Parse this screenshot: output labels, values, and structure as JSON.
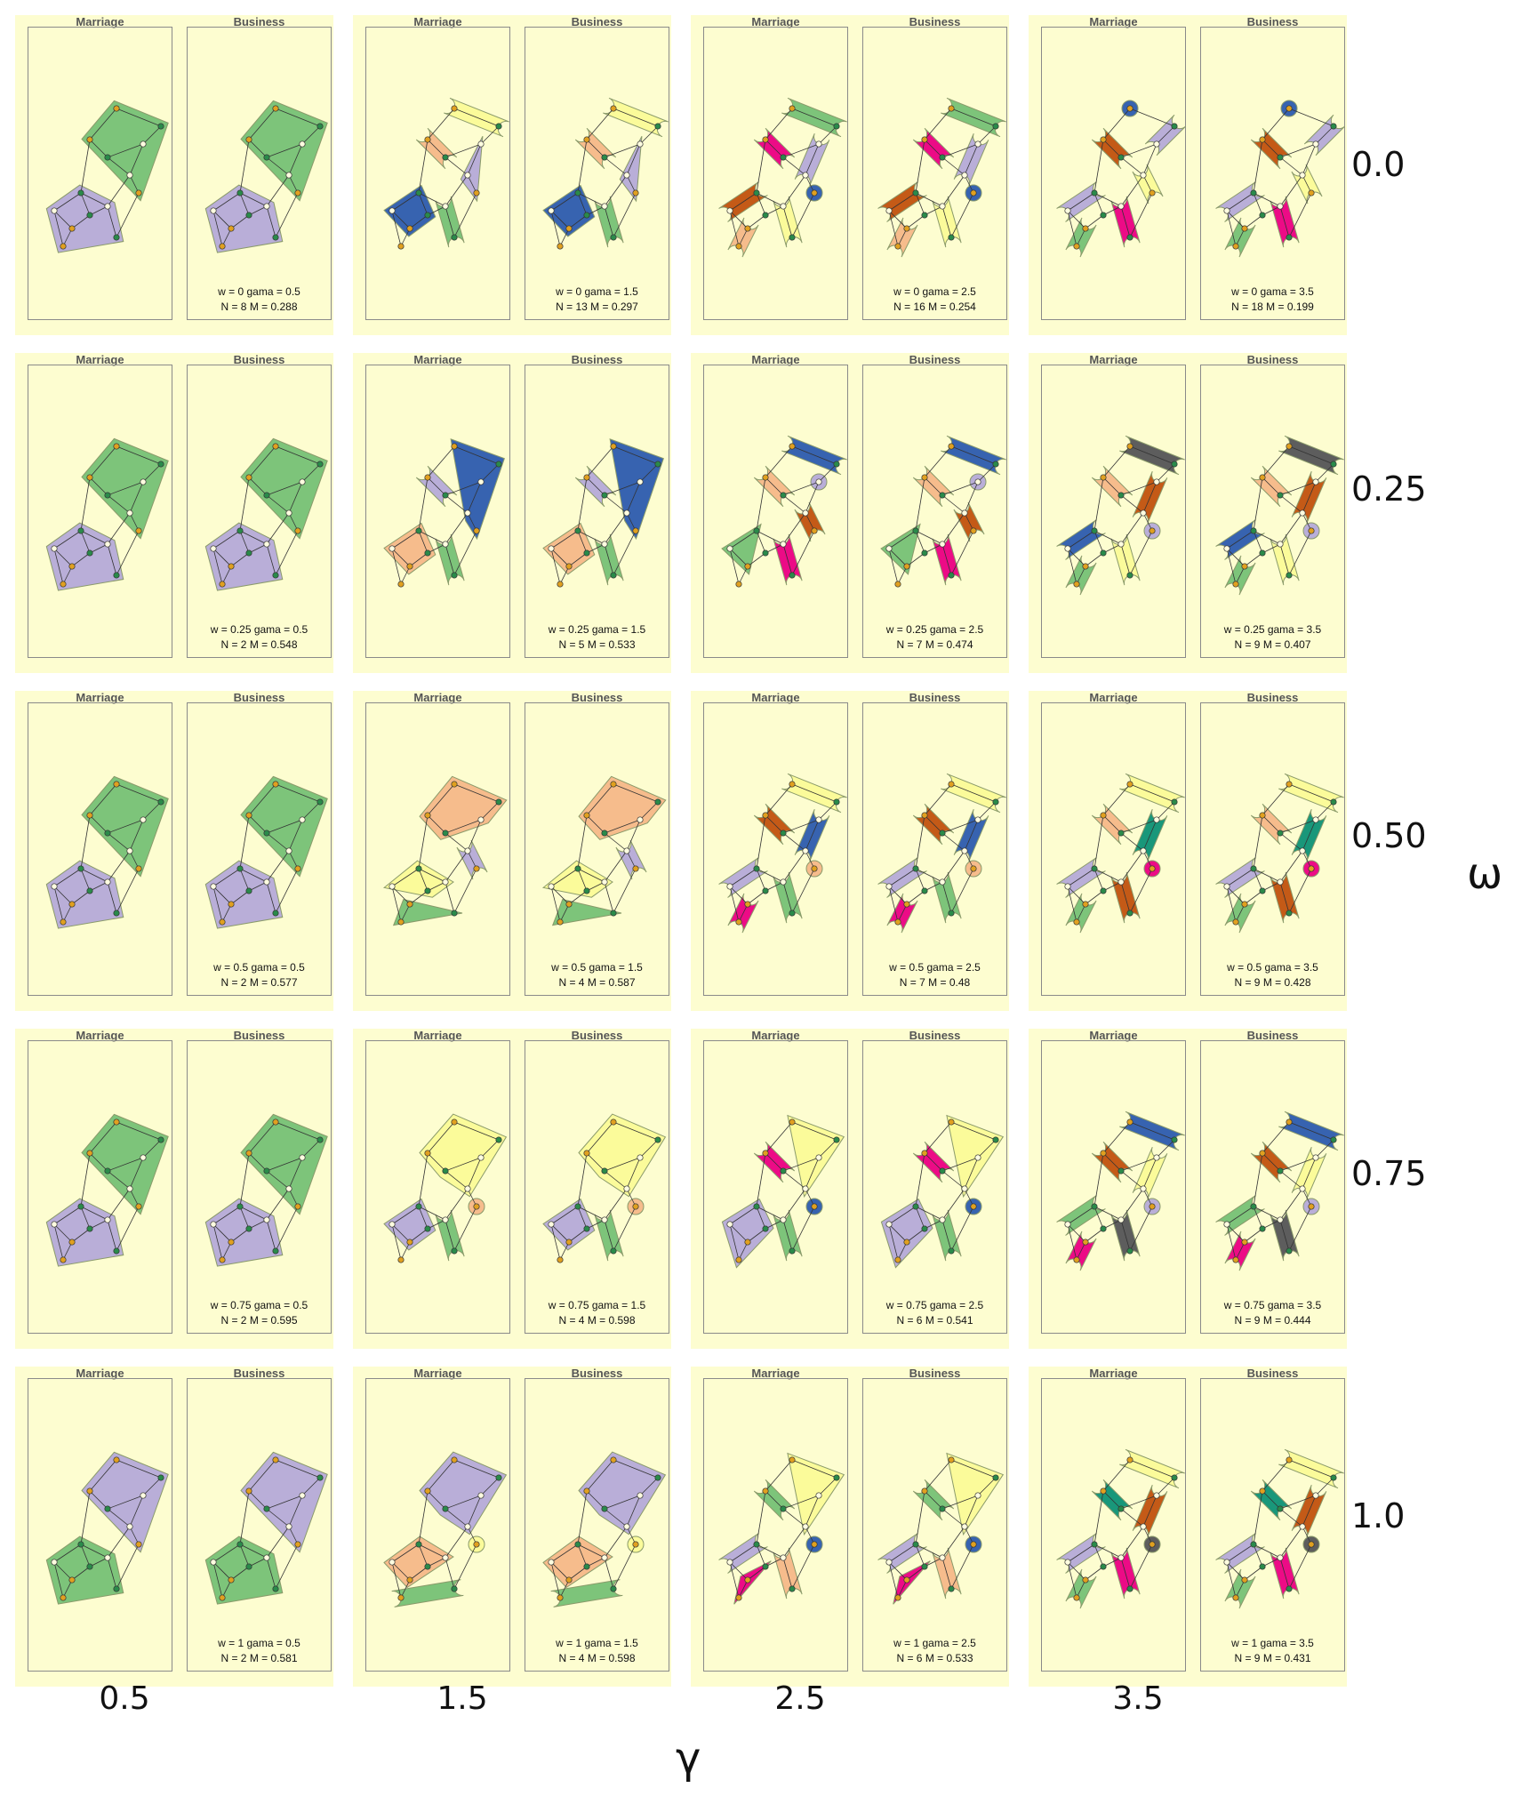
{
  "panel_titles": {
    "left": "Marriage",
    "right": "Business"
  },
  "gamma_values": [
    "0.5",
    "1.5",
    "2.5",
    "3.5"
  ],
  "omega_values": [
    "0.0",
    "0.25",
    "0.50",
    "0.75",
    "1.0"
  ],
  "axis": {
    "gamma_symbol": "γ",
    "omega_symbol": "ω"
  },
  "tiles": [
    [
      {
        "line1": "w = 0 gama = 0.5",
        "line2": "N = 8 M = 0.288",
        "scheme": "c0"
      },
      {
        "line1": "w = 0 gama = 1.5",
        "line2": "N = 13 M = 0.297",
        "scheme": "c1"
      },
      {
        "line1": "w = 0 gama = 2.5",
        "line2": "N = 16 M = 0.254",
        "scheme": "c2"
      },
      {
        "line1": "w = 0 gama = 3.5",
        "line2": "N = 18 M = 0.199",
        "scheme": "c3"
      }
    ],
    [
      {
        "line1": "w = 0.25 gama = 0.5",
        "line2": "N = 2 M = 0.548",
        "scheme": "two"
      },
      {
        "line1": "w = 0.25 gama = 1.5",
        "line2": "N = 5 M = 0.533",
        "scheme": "c1b"
      },
      {
        "line1": "w = 0.25 gama = 2.5",
        "line2": "N = 7 M = 0.474",
        "scheme": "c2b"
      },
      {
        "line1": "w = 0.25 gama = 3.5",
        "line2": "N = 9 M = 0.407",
        "scheme": "c3b"
      }
    ],
    [
      {
        "line1": "w = 0.5 gama = 0.5",
        "line2": "N = 2 M = 0.577",
        "scheme": "two"
      },
      {
        "line1": "w = 0.5 gama = 1.5",
        "line2": "N = 4 M = 0.587",
        "scheme": "c1c"
      },
      {
        "line1": "w = 0.5 gama = 2.5",
        "line2": "N = 7 M = 0.48",
        "scheme": "c2c"
      },
      {
        "line1": "w = 0.5 gama = 3.5",
        "line2": "N = 9 M = 0.428",
        "scheme": "c3c"
      }
    ],
    [
      {
        "line1": "w = 0.75 gama = 0.5",
        "line2": "N = 2 M = 0.595",
        "scheme": "two"
      },
      {
        "line1": "w = 0.75 gama = 1.5",
        "line2": "N = 4 M = 0.598",
        "scheme": "c1d"
      },
      {
        "line1": "w = 0.75 gama = 2.5",
        "line2": "N = 6 M = 0.541",
        "scheme": "c2d"
      },
      {
        "line1": "w = 0.75 gama = 3.5",
        "line2": "N = 9 M = 0.444",
        "scheme": "c3d"
      }
    ],
    [
      {
        "line1": "w = 1 gama = 0.5",
        "line2": "N = 2 M = 0.581",
        "scheme": "twoB"
      },
      {
        "line1": "w = 1 gama = 1.5",
        "line2": "N = 4 M = 0.598",
        "scheme": "c1e"
      },
      {
        "line1": "w = 1 gama = 2.5",
        "line2": "N = 6 M = 0.533",
        "scheme": "c2e"
      },
      {
        "line1": "w = 1 gama = 3.5",
        "line2": "N = 9 M = 0.431",
        "scheme": "c3e"
      }
    ]
  ],
  "colors": {
    "green": "#7dc47a",
    "purple": "#b9aed8",
    "peach": "#f6bc8c",
    "yellow": "#fbfb9a",
    "blue": "#3763b0",
    "gray": "#5d5d5d",
    "orange": "#c45a17",
    "pink": "#ec0b86",
    "teal": "#19977a",
    "background": "#fdfdd0"
  }
}
